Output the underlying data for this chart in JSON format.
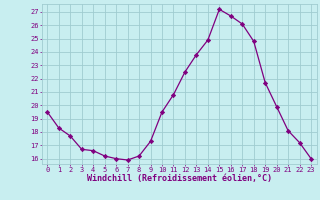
{
  "x": [
    0,
    1,
    2,
    3,
    4,
    5,
    6,
    7,
    8,
    9,
    10,
    11,
    12,
    13,
    14,
    15,
    16,
    17,
    18,
    19,
    20,
    21,
    22,
    23
  ],
  "y": [
    19.5,
    18.3,
    17.7,
    16.7,
    16.6,
    16.2,
    16.0,
    15.9,
    16.2,
    17.3,
    19.5,
    20.8,
    22.5,
    23.8,
    24.9,
    27.2,
    26.7,
    26.1,
    24.8,
    21.7,
    19.9,
    18.1,
    17.2,
    16.0
  ],
  "line_color": "#800080",
  "marker": "D",
  "marker_size": 2.2,
  "bg_color": "#c8eef0",
  "grid_color": "#a0ccd0",
  "ylabel_values": [
    16,
    17,
    18,
    19,
    20,
    21,
    22,
    23,
    24,
    25,
    26,
    27
  ],
  "ylim": [
    15.6,
    27.6
  ],
  "xlim": [
    -0.5,
    23.5
  ],
  "xlabel": "Windchill (Refroidissement éolien,°C)",
  "xlabel_color": "#800080",
  "tick_color": "#800080",
  "tick_fontsize": 5.0,
  "xlabel_fontsize": 6.0
}
